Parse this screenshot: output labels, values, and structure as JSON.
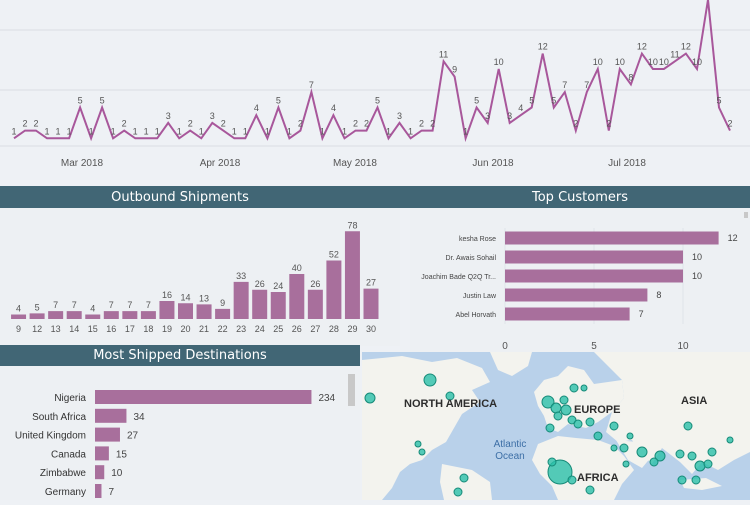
{
  "colors": {
    "header_bg": "#416675",
    "bar": "#a86f9c",
    "line": "#a8579b",
    "map_water": "#b9d1ea",
    "map_land": "#f3f3ee",
    "map_dot": "#2bbfa9"
  },
  "headers": {
    "outbound": "Outbound Shipments",
    "top_customers": "Top Customers",
    "destinations": "Most Shipped Destinations"
  },
  "chart_data": [
    {
      "type": "line",
      "title": "",
      "x_tick_labels": [
        "Mar 2018",
        "Apr 2018",
        "May 2018",
        "Jun 2018",
        "Jul 2018"
      ],
      "values": [
        1,
        2,
        2,
        1,
        1,
        1,
        5,
        1,
        5,
        1,
        2,
        1,
        1,
        1,
        3,
        1,
        2,
        1,
        3,
        2,
        1,
        1,
        4,
        1,
        5,
        1,
        2,
        7,
        1,
        4,
        1,
        2,
        2,
        5,
        1,
        3,
        1,
        2,
        2,
        11,
        9,
        1,
        5,
        3,
        10,
        3,
        4,
        5,
        12,
        5,
        7,
        2,
        7,
        10,
        2,
        10,
        8,
        12,
        10,
        10,
        11,
        12,
        10,
        19,
        5,
        2
      ],
      "grid": true
    },
    {
      "type": "bar",
      "title": "Outbound Shipments",
      "categories": [
        "8",
        "9",
        "12",
        "13",
        "14",
        "15",
        "16",
        "17",
        "18",
        "19",
        "20",
        "21",
        "22",
        "23",
        "24",
        "25",
        "26",
        "27",
        "28",
        "29",
        "30"
      ],
      "visible_tick_labels": [
        "9",
        "12",
        "13",
        "14",
        "15",
        "16",
        "17",
        "18",
        "19",
        "20",
        "21",
        "22",
        "23",
        "24",
        "25",
        "26",
        "27",
        "28",
        "29",
        "30"
      ],
      "values": [
        0,
        4,
        5,
        7,
        7,
        4,
        7,
        7,
        7,
        16,
        14,
        13,
        9,
        33,
        26,
        24,
        40,
        26,
        52,
        78,
        27
      ],
      "ylim": [
        0,
        80
      ]
    },
    {
      "type": "bar",
      "orientation": "horizontal",
      "title": "Top Customers",
      "categories": [
        "kesha Rose",
        "Dr. Awais Sohail",
        "Joachim Bade Q2Q Tr...",
        "Justin Law",
        "Abel Horvath"
      ],
      "values": [
        12,
        10,
        10,
        8,
        7
      ],
      "x_ticks": [
        "0",
        "5",
        "10"
      ],
      "xlim": [
        0,
        12.5
      ]
    },
    {
      "type": "bar",
      "orientation": "horizontal",
      "title": "Most Shipped Destinations",
      "categories": [
        "Nigeria",
        "South Africa",
        "United Kingdom",
        "Canada",
        "Zimbabwe",
        "Germany"
      ],
      "values": [
        234,
        34,
        27,
        15,
        10,
        7
      ],
      "xlim": [
        0,
        240
      ]
    }
  ],
  "map": {
    "labels": {
      "north_america": "NORTH AMERICA",
      "europe": "EUROPE",
      "asia": "ASIA",
      "atlantic": "Atlantic\nOcean",
      "africa": "AFRICA"
    }
  }
}
